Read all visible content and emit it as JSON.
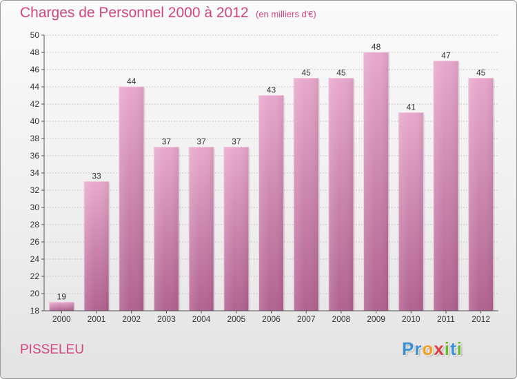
{
  "header": {
    "title": "Charges de Personnel 2000 à 2012",
    "unit": "(en milliers d'€)"
  },
  "footer": {
    "city": "PISSELEU",
    "brand": {
      "letters": [
        {
          "char": "P",
          "color": "#3a8fd6"
        },
        {
          "char": "r",
          "color": "#3a8fd6"
        },
        {
          "char": "o",
          "color": "#f0a020"
        },
        {
          "char": "x",
          "color": "#e03c3c"
        },
        {
          "char": "i",
          "color": "#6ab82e"
        },
        {
          "char": "t",
          "color": "#3a8fd6"
        },
        {
          "char": "i",
          "color": "#6ab82e"
        }
      ]
    }
  },
  "chart_data": {
    "type": "bar",
    "title": "Charges de Personnel 2000 à 2012",
    "subtitle": "(en milliers d'€)",
    "categories": [
      "2000",
      "2001",
      "2002",
      "2003",
      "2004",
      "2005",
      "2006",
      "2007",
      "2008",
      "2009",
      "2010",
      "2011",
      "2012"
    ],
    "values": [
      19,
      33,
      44,
      37,
      37,
      37,
      43,
      45,
      45,
      48,
      41,
      47,
      45
    ],
    "ylim": [
      18,
      50
    ],
    "yticks": [
      18,
      20,
      22,
      24,
      26,
      28,
      30,
      32,
      34,
      36,
      38,
      40,
      42,
      44,
      46,
      48,
      50
    ],
    "grid": true,
    "data_labels": true,
    "bar_color": "#d98fb7",
    "bar_color_dark": "#b0628f"
  }
}
